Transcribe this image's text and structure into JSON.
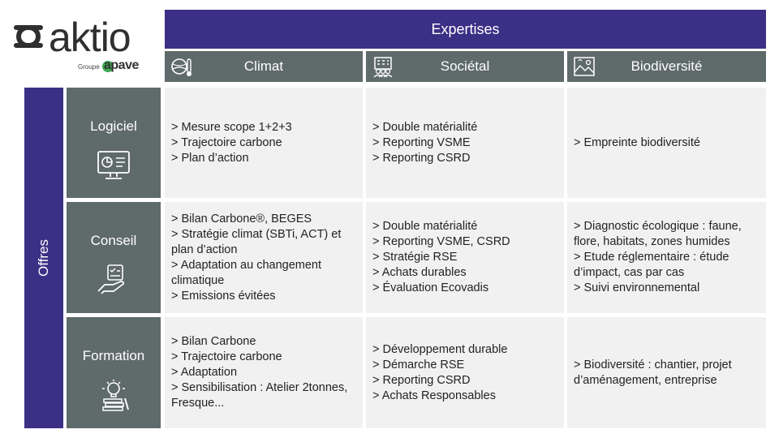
{
  "logo": {
    "name": "aktio",
    "group_label": "Groupe",
    "group_name": "apave"
  },
  "header": {
    "title": "Expertises",
    "columns": [
      {
        "label": "Climat",
        "icon": "globe-thermometer-icon"
      },
      {
        "label": "Sociétal",
        "icon": "building-people-icon"
      },
      {
        "label": "Biodiversité",
        "icon": "nature-landscape-icon"
      }
    ]
  },
  "side_label": "Offres",
  "rows": [
    {
      "label": "Logiciel",
      "icon": "software-screen-icon",
      "cells": [
        "> Mesure scope 1+2+3\n> Trajectoire carbone\n> Plan d’action",
        "> Double matérialité\n> Reporting VSME\n> Reporting CSRD",
        "> Empreinte biodiversité"
      ]
    },
    {
      "label": "Conseil",
      "icon": "consulting-hand-icon",
      "cells": [
        "> Bilan Carbone®, BEGES\n> Stratégie climat (SBTi, ACT) et plan d’action\n> Adaptation au changement climatique\n> Emissions évitées",
        "> Double matérialité\n> Reporting VSME, CSRD\n> Stratégie RSE\n> Achats durables\n> Évaluation Ecovadis",
        "> Diagnostic écologique : faune, flore, habitats, zones humides\n> Etude réglementaire : étude d’impact, cas par cas\n> Suivi environnemental"
      ]
    },
    {
      "label": "Formation",
      "icon": "lightbulb-books-icon",
      "cells": [
        "> Bilan Carbone\n> Trajectoire carbone\n> Adaptation\n> Sensibilisation : Atelier 2tonnes, Fresque...",
        "> Développement durable\n> Démarche RSE\n> Reporting CSRD\n> Achats Responsables",
        "> Biodiversité : chantier, projet d’aménagement, entreprise"
      ]
    }
  ],
  "colors": {
    "primary": "#3b2f86",
    "header_gray": "#5f6a6a",
    "cell_bg": "#f1f1f1",
    "apave_green": "#3aa852"
  }
}
